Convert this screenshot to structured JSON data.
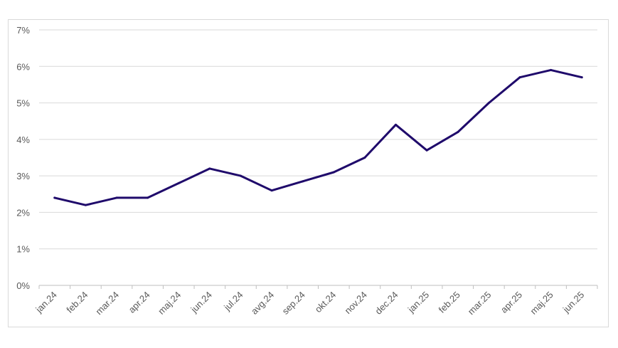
{
  "chart_data": {
    "type": "line",
    "title": "",
    "xlabel": "",
    "ylabel": "",
    "ylim": [
      0,
      7
    ],
    "y_ticks": [
      "0%",
      "1%",
      "2%",
      "3%",
      "4%",
      "5%",
      "6%",
      "7%"
    ],
    "categories": [
      "jan.24",
      "feb.24",
      "mar.24",
      "apr.24",
      "maj.24",
      "jun.24",
      "jul.24",
      "avg.24",
      "sep.24",
      "okt.24",
      "nov.24",
      "dec.24",
      "jan.25",
      "feb.25",
      "mar.25",
      "apr.25",
      "maj.25",
      "jun.25"
    ],
    "series": [
      {
        "color": "#1f0a6b",
        "values": [
          2.4,
          2.2,
          2.4,
          2.4,
          2.8,
          3.2,
          3.0,
          2.6,
          2.85,
          3.1,
          3.5,
          4.4,
          3.7,
          4.2,
          5.0,
          5.7,
          5.9,
          5.7
        ]
      }
    ],
    "grid": true,
    "legend": "none"
  }
}
